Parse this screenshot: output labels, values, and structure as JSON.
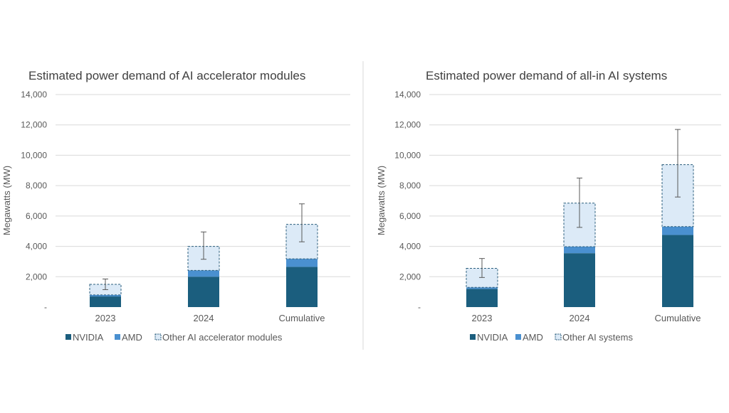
{
  "colors": {
    "nvidia": "#1b5e7e",
    "amd": "#4a90d0",
    "other_fill": "#dceaf7",
    "other_border": "#2c5f7c",
    "grid": "#d9d9d9",
    "text": "#595959",
    "title": "#404040",
    "divider": "#d9d9d9",
    "errorbar": "#595959"
  },
  "chart_data": [
    {
      "type": "bar",
      "stacked": true,
      "title": "Estimated power demand of AI accelerator modules",
      "ylabel": "Megawatts (MW)",
      "xlabel": "",
      "ylim": [
        0,
        14000
      ],
      "yticks": [
        0,
        2000,
        4000,
        6000,
        8000,
        10000,
        12000,
        14000
      ],
      "ytick_labels": [
        "-",
        "2,000",
        "4,000",
        "6,000",
        "8,000",
        "10,000",
        "12,000",
        "14,000"
      ],
      "grid": true,
      "legend_position": "bottom-left",
      "categories": [
        "2023",
        "2024",
        "Cumulative"
      ],
      "series": [
        {
          "name": "NVIDIA",
          "values": [
            700,
            2000,
            2650
          ]
        },
        {
          "name": "AMD",
          "values": [
            100,
            420,
            530
          ]
        },
        {
          "name": "Other AI accelerator modules",
          "values": [
            700,
            1580,
            2270
          ]
        }
      ],
      "error_bars": [
        {
          "low": 1150,
          "high": 1850
        },
        {
          "low": 3150,
          "high": 4950
        },
        {
          "low": 4300,
          "high": 6800
        }
      ]
    },
    {
      "type": "bar",
      "stacked": true,
      "title": "Estimated power demand of all-in AI systems",
      "ylabel": "Megawatts (MW)",
      "xlabel": "",
      "ylim": [
        0,
        14000
      ],
      "yticks": [
        0,
        2000,
        4000,
        6000,
        8000,
        10000,
        12000,
        14000
      ],
      "ytick_labels": [
        "-",
        "2,000",
        "4,000",
        "6,000",
        "8,000",
        "10,000",
        "12,000",
        "14,000"
      ],
      "grid": true,
      "legend_position": "bottom-left",
      "categories": [
        "2023",
        "2024",
        "Cumulative"
      ],
      "series": [
        {
          "name": "NVIDIA",
          "values": [
            1200,
            3550,
            4750
          ]
        },
        {
          "name": "AMD",
          "values": [
            100,
            430,
            550
          ]
        },
        {
          "name": "Other AI systems",
          "values": [
            1250,
            2870,
            4080
          ]
        }
      ],
      "error_bars": [
        {
          "low": 1950,
          "high": 3200
        },
        {
          "low": 5250,
          "high": 8500
        },
        {
          "low": 7250,
          "high": 11700
        }
      ]
    }
  ]
}
